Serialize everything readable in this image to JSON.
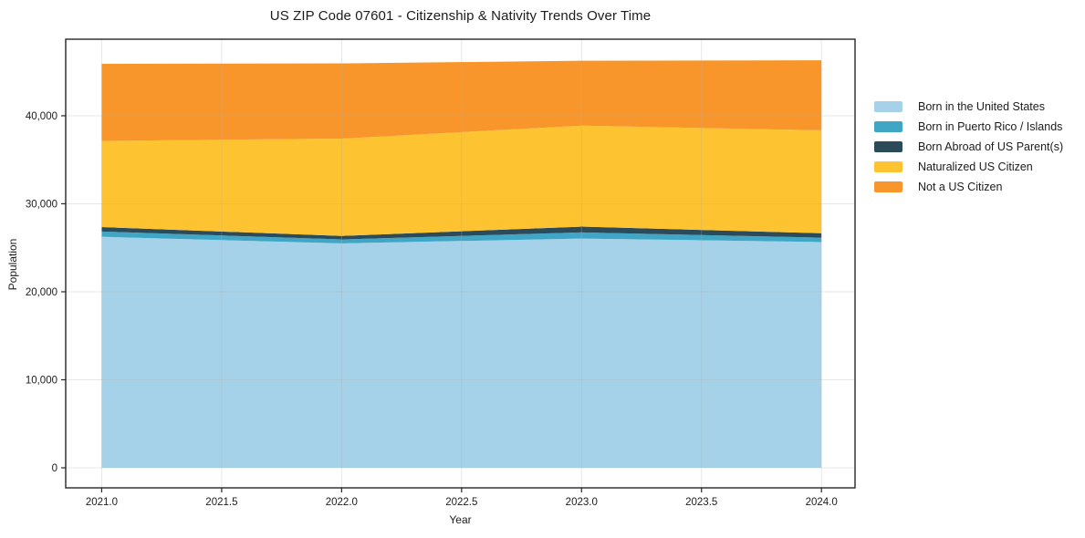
{
  "chart_data": {
    "type": "area",
    "stacked": true,
    "title": "US ZIP Code 07601 - Citizenship & Nativity Trends Over Time",
    "xlabel": "Year",
    "ylabel": "Population",
    "x": [
      2021,
      2022,
      2023,
      2024
    ],
    "series": [
      {
        "name": "Born in the United States",
        "color": "#a5d2e8",
        "values": [
          26250,
          25500,
          26050,
          25650
        ]
      },
      {
        "name": "Born in Puerto Rico / Islands",
        "color": "#3fa6c6",
        "values": [
          600,
          450,
          700,
          500
        ]
      },
      {
        "name": "Born Abroad of US Parent(s)",
        "color": "#2b4a5a",
        "values": [
          500,
          400,
          650,
          500
        ]
      },
      {
        "name": "Naturalized US Citizen",
        "color": "#fdc330",
        "values": [
          9800,
          11050,
          11480,
          11700
        ]
      },
      {
        "name": "Not a US Citizen",
        "color": "#f8962b",
        "values": [
          8750,
          8550,
          7370,
          7950
        ]
      }
    ],
    "x_ticks": [
      {
        "value": 2021.0,
        "label": "2021.0"
      },
      {
        "value": 2021.5,
        "label": "2021.5"
      },
      {
        "value": 2022.0,
        "label": "2022.0"
      },
      {
        "value": 2022.5,
        "label": "2022.5"
      },
      {
        "value": 2023.0,
        "label": "2023.0"
      },
      {
        "value": 2023.5,
        "label": "2023.5"
      },
      {
        "value": 2024.0,
        "label": "2024.0"
      }
    ],
    "y_ticks": [
      {
        "value": 0,
        "label": "0"
      },
      {
        "value": 10000,
        "label": "10,000"
      },
      {
        "value": 20000,
        "label": "20,000"
      },
      {
        "value": 30000,
        "label": "30,000"
      },
      {
        "value": 40000,
        "label": "40,000"
      }
    ],
    "xlim": [
      2020.85,
      2024.14
    ],
    "ylim": [
      -2280,
      48700
    ],
    "grid": true,
    "legend_position": "right",
    "colors": {
      "spine": "#262626",
      "grid": "#b0b0b0",
      "text": "#1c1c1c",
      "background": "#ffffff"
    }
  }
}
